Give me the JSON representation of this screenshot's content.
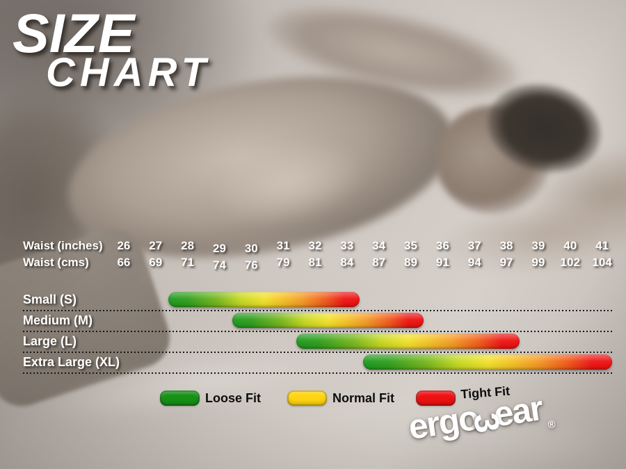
{
  "title": {
    "line1": "SIZE",
    "line2": "CHART"
  },
  "waist_table": {
    "inches_label": "Waist (inches)",
    "cms_label": "Waist (cms)",
    "inches": [
      "26",
      "27",
      "28",
      "29",
      "30",
      "31",
      "32",
      "33",
      "34",
      "35",
      "36",
      "37",
      "38",
      "39",
      "40",
      "41"
    ],
    "cms": [
      "66",
      "69",
      "71",
      "74",
      "76",
      "79",
      "81",
      "84",
      "87",
      "89",
      "91",
      "94",
      "97",
      "99",
      "102",
      "104"
    ]
  },
  "chart_data": {
    "type": "bar",
    "subtype": "horizontal-range-bars",
    "title": "SIZE CHART",
    "x_axis": {
      "label_top": "Waist (inches)",
      "label_bottom": "Waist (cms)",
      "ticks_inches": [
        26,
        27,
        28,
        29,
        30,
        31,
        32,
        33,
        34,
        35,
        36,
        37,
        38,
        39,
        40,
        41
      ],
      "ticks_cms": [
        66,
        69,
        71,
        74,
        76,
        79,
        81,
        84,
        87,
        89,
        91,
        94,
        97,
        99,
        102,
        104
      ],
      "range_inches": [
        26,
        41
      ]
    },
    "series": [
      {
        "label": "Small (S)",
        "start_inches": 27.4,
        "end_inches": 33.4
      },
      {
        "label": "Medium (M)",
        "start_inches": 29.4,
        "end_inches": 35.4
      },
      {
        "label": "Large (L)",
        "start_inches": 31.4,
        "end_inches": 38.4
      },
      {
        "label": "Extra Large (XL)",
        "start_inches": 33.5,
        "end_inches": 41.3
      }
    ],
    "bar_gradient": [
      "#1f9b1f",
      "#a6c71d",
      "#f2e22c",
      "#f59b26",
      "#ee1111"
    ],
    "gradient_meaning": "green = Loose Fit, yellow = Normal Fit, red = Tight Fit",
    "legend_position": "bottom",
    "grid": "dotted row separators"
  },
  "legend": {
    "items": [
      {
        "key": "loose",
        "label": "Loose Fit",
        "color": "#169116"
      },
      {
        "key": "normal",
        "label": "Normal Fit",
        "color": "#ffd412"
      },
      {
        "key": "tight",
        "label": "Tight Fit",
        "color": "#ee1111"
      }
    ]
  },
  "logo": {
    "part1": "ergo",
    "w_glyph": "3",
    "part2": "ear",
    "trademark": "®"
  }
}
